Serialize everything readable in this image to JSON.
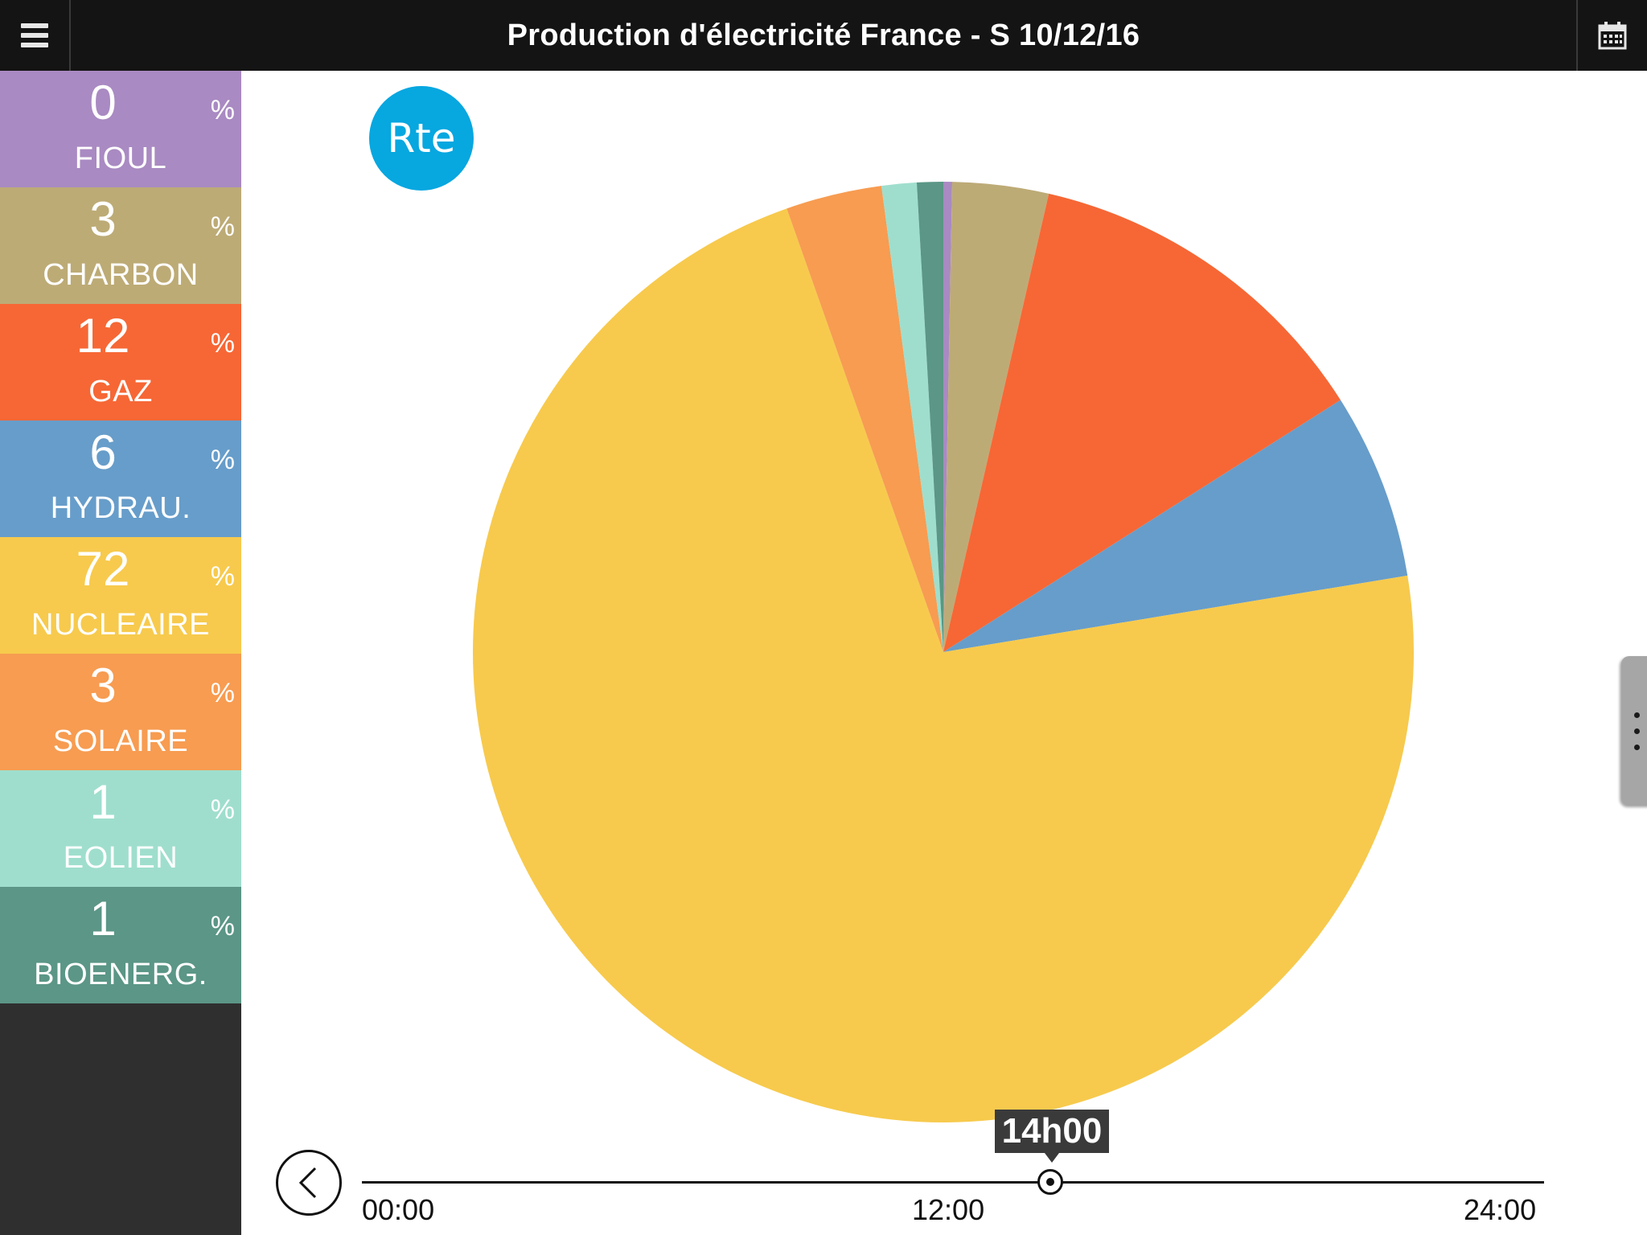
{
  "header": {
    "title": "Production d'électricité France - S 10/12/16",
    "menu_icon": "hamburger-menu-icon",
    "calendar_icon": "calendar-icon"
  },
  "logo": {
    "text": "Rte",
    "color": "#07a7e0"
  },
  "sources": [
    {
      "label": "FIOUL",
      "value": "0",
      "unit": "%",
      "color": "#a98ac2"
    },
    {
      "label": "CHARBON",
      "value": "3",
      "unit": "%",
      "color": "#bdab76"
    },
    {
      "label": "GAZ",
      "value": "12",
      "unit": "%",
      "color": "#f66735"
    },
    {
      "label": "HYDRAU.",
      "value": "6",
      "unit": "%",
      "color": "#679dca"
    },
    {
      "label": "NUCLEAIRE",
      "value": "72",
      "unit": "%",
      "color": "#f7ca4d"
    },
    {
      "label": "SOLAIRE",
      "value": "3",
      "unit": "%",
      "color": "#f79c51"
    },
    {
      "label": "EOLIEN",
      "value": "1",
      "unit": "%",
      "color": "#9fdecd"
    },
    {
      "label": "BIOENERG.",
      "value": "1",
      "unit": "%",
      "color": "#5b9686"
    }
  ],
  "chart_data": {
    "type": "pie",
    "categories": [
      "FIOUL",
      "CHARBON",
      "GAZ",
      "HYDRAU.",
      "NUCLEAIRE",
      "SOLAIRE",
      "EOLIEN",
      "BIOENERG."
    ],
    "values": [
      0.3,
      3.3,
      12.4,
      6.4,
      72.2,
      3.3,
      1.2,
      0.9
    ],
    "colors": [
      "#a98ac2",
      "#bdab76",
      "#f66735",
      "#679dca",
      "#f7ca4d",
      "#f79c51",
      "#9fdecd",
      "#5b9686"
    ]
  },
  "timeline": {
    "current": "14h00",
    "current_fraction": 0.583,
    "ticks": [
      "00:00",
      "12:00",
      "24:00"
    ]
  }
}
